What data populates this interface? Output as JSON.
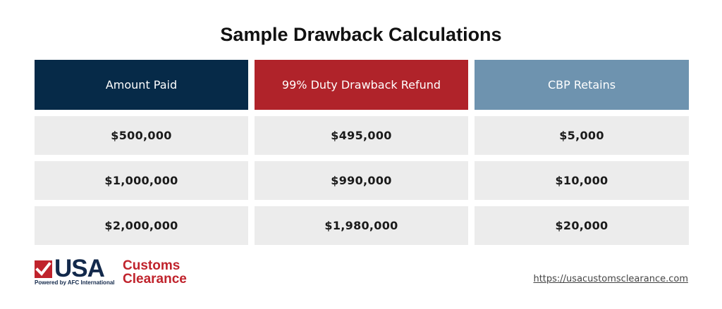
{
  "title": "Sample Drawback Calculations",
  "table": {
    "columns": [
      {
        "label": "Amount Paid",
        "color": "#062a48"
      },
      {
        "label": "99% Duty Drawback Refund",
        "color": "#b0232a"
      },
      {
        "label": "CBP Retains",
        "color": "#6e93af"
      }
    ],
    "rows": [
      [
        "$500,000",
        "$495,000",
        "$5,000"
      ],
      [
        "$1,000,000",
        "$990,000",
        "$10,000"
      ],
      [
        "$2,000,000",
        "$1,980,000",
        "$20,000"
      ]
    ]
  },
  "logo": {
    "usa": "USA",
    "word1": "Customs",
    "word2": "Clearance",
    "tagline": "Powered by AFC International",
    "navy": "#13294b",
    "red": "#c0232c"
  },
  "footer": {
    "url": "https://usacustomsclearance.com"
  }
}
